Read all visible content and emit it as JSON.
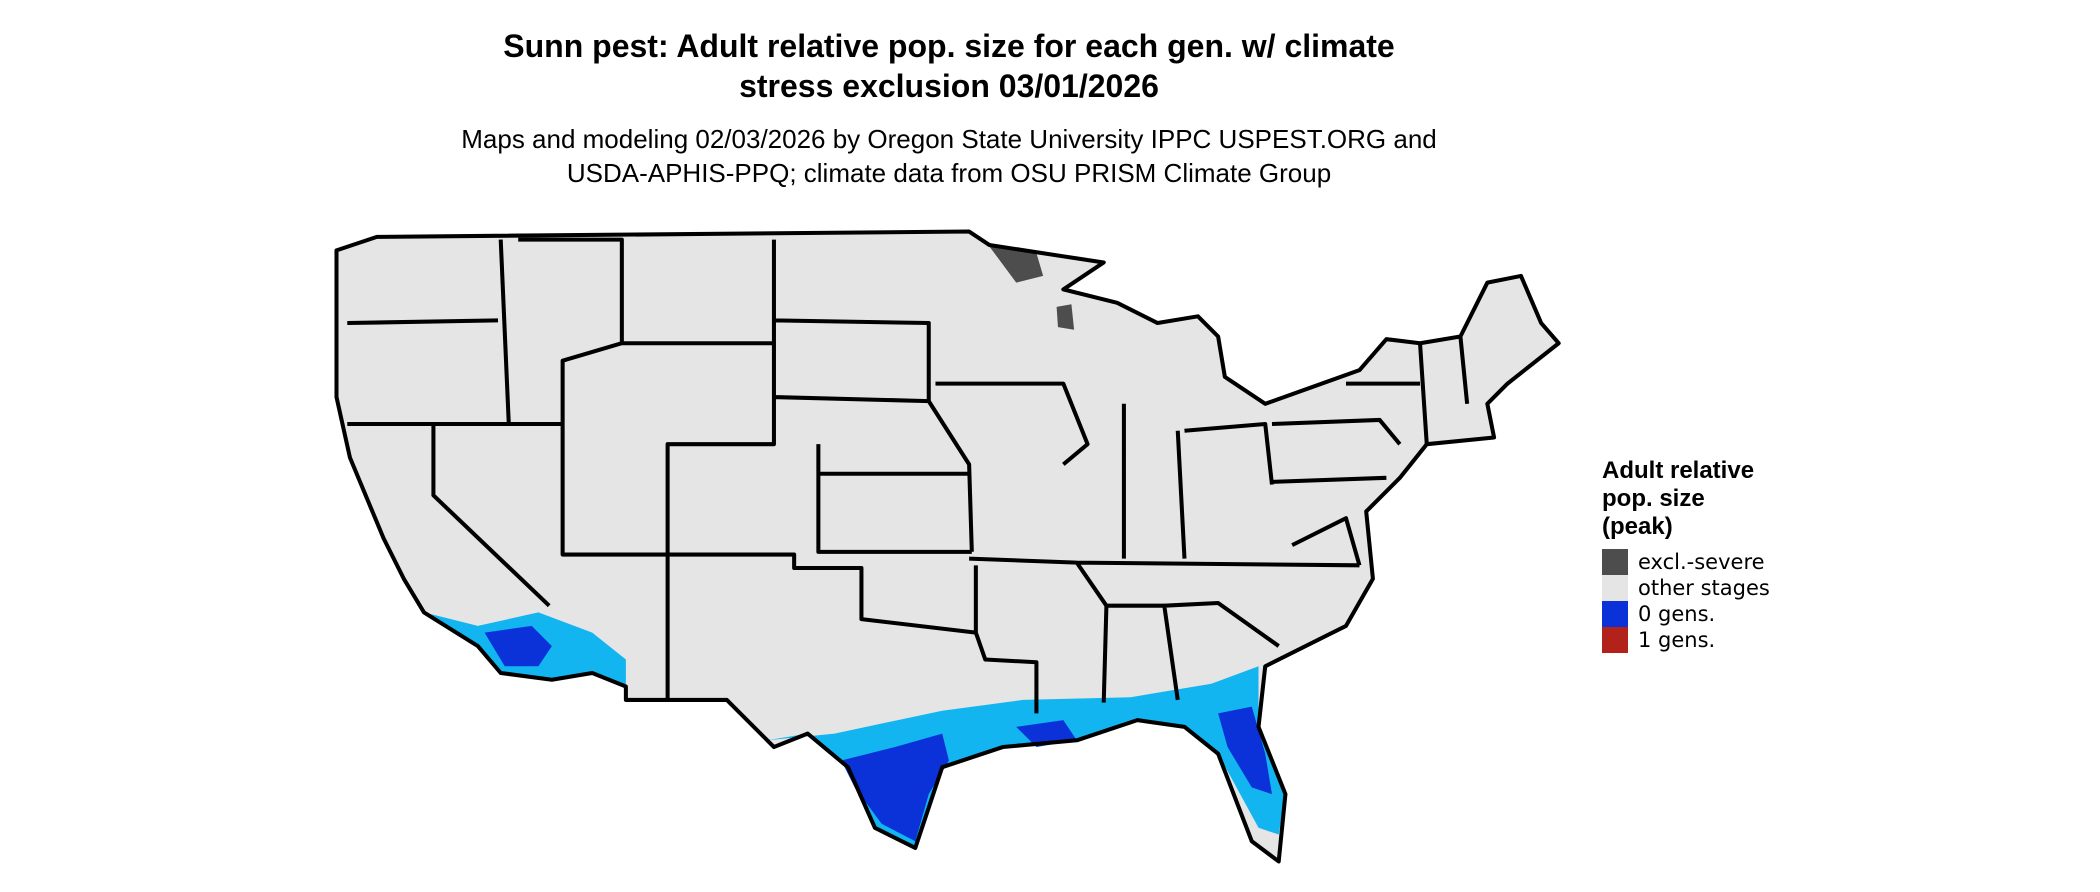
{
  "header": {
    "title": [
      "Sunn pest: Adult relative pop. size for each gen. w/ climate",
      "stress exclusion 03/01/2026"
    ],
    "subtitle": [
      "Maps and modeling 02/03/2026 by Oregon State University IPPC USPEST.ORG and",
      "USDA-APHIS-PPQ; climate data from OSU PRISM Climate Group"
    ]
  },
  "legend": {
    "title": [
      "Adult relative",
      "pop. size",
      "(peak)"
    ],
    "items": [
      {
        "label": "excl.-severe",
        "color": "#4d4d4d"
      },
      {
        "label": "other stages",
        "color": "#e5e5e5"
      },
      {
        "label": "0 gens.",
        "color": "#0a32d8"
      },
      {
        "label": "1 gens.",
        "color": "#b2221a"
      }
    ]
  }
}
